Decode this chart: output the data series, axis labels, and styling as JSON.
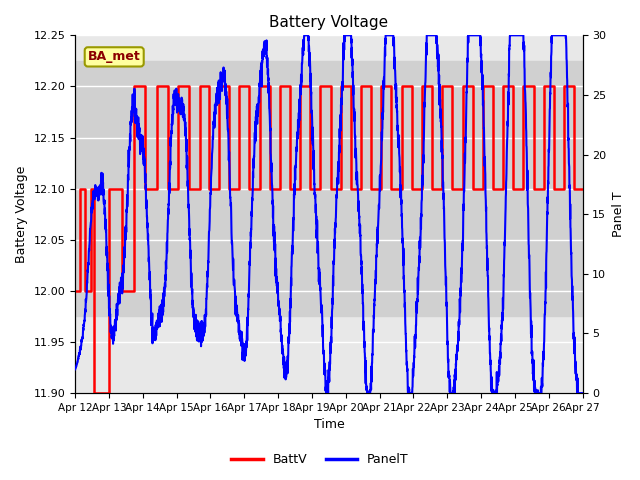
{
  "title": "Battery Voltage",
  "xlabel": "Time",
  "ylabel_left": "Battery Voltage",
  "ylabel_right": "Panel T",
  "ylim_left": [
    11.9,
    12.25
  ],
  "ylim_right": [
    0,
    30
  ],
  "yticks_left": [
    11.9,
    11.95,
    12.0,
    12.05,
    12.1,
    12.15,
    12.2,
    12.25
  ],
  "yticks_right": [
    0,
    5,
    10,
    15,
    20,
    25,
    30
  ],
  "xtick_labels": [
    "Apr 12",
    "Apr 13",
    "Apr 14",
    "Apr 15",
    "Apr 16",
    "Apr 17",
    "Apr 18",
    "Apr 19",
    "Apr 20",
    "Apr 21",
    "Apr 22",
    "Apr 23",
    "Apr 24",
    "Apr 25",
    "Apr 26",
    "Apr 27"
  ],
  "legend_label_red": "BattV",
  "legend_label_blue": "PanelT",
  "annotation_text": "BA_met",
  "background_color": "#ffffff",
  "outer_bg_color": "#e8e8e8",
  "inner_band_color": "#d0d0d0",
  "grid_color": "#ffffff",
  "batt_color": "#ff0000",
  "panel_color": "#0000ff",
  "batt_linewidth": 1.8,
  "panel_linewidth": 1.5,
  "batt_steps_x": [
    0.0,
    0.13,
    0.13,
    0.28,
    0.28,
    0.48,
    0.48,
    0.56,
    0.56,
    1.0,
    1.0,
    1.38,
    1.38,
    1.75,
    1.75,
    2.05,
    2.05,
    2.42,
    2.42,
    2.75,
    2.75,
    3.05,
    3.05,
    3.38,
    3.38,
    3.7,
    3.7,
    3.95,
    3.95,
    4.25,
    4.25,
    4.55,
    4.55,
    4.85,
    4.85,
    5.15,
    5.15,
    5.45,
    5.45,
    5.75,
    5.75,
    6.05,
    6.05,
    6.35,
    6.35,
    6.65,
    6.65,
    6.95,
    6.95,
    7.25,
    7.25,
    7.55,
    7.55,
    7.85,
    7.85,
    8.15,
    8.15,
    8.45,
    8.45,
    8.75,
    8.75,
    9.05,
    9.05,
    9.35,
    9.35,
    9.65,
    9.65,
    9.95,
    9.95,
    10.25,
    10.25,
    10.55,
    10.55,
    10.85,
    10.85,
    11.15,
    11.15,
    11.45,
    11.45,
    11.75,
    11.75,
    12.05,
    12.05,
    12.35,
    12.35,
    12.65,
    12.65,
    12.95,
    12.95,
    13.25,
    13.25,
    13.55,
    13.55,
    13.85,
    13.85,
    14.15,
    14.15,
    14.45,
    14.45,
    14.75,
    14.75,
    15.0
  ],
  "batt_steps_y": [
    12.0,
    12.0,
    12.1,
    12.1,
    12.0,
    12.0,
    12.1,
    12.1,
    11.9,
    11.9,
    12.1,
    12.1,
    12.0,
    12.0,
    12.2,
    12.2,
    12.1,
    12.1,
    12.2,
    12.2,
    12.1,
    12.1,
    12.2,
    12.2,
    12.1,
    12.1,
    12.2,
    12.2,
    12.1,
    12.1,
    12.2,
    12.2,
    12.1,
    12.1,
    12.2,
    12.2,
    12.1,
    12.1,
    12.2,
    12.2,
    12.1,
    12.1,
    12.2,
    12.2,
    12.1,
    12.1,
    12.2,
    12.2,
    12.1,
    12.1,
    12.2,
    12.2,
    12.1,
    12.1,
    12.2,
    12.2,
    12.1,
    12.1,
    12.2,
    12.2,
    12.1,
    12.1,
    12.2,
    12.2,
    12.1,
    12.1,
    12.2,
    12.2,
    12.1,
    12.1,
    12.2,
    12.2,
    12.1,
    12.1,
    12.2,
    12.2,
    12.1,
    12.1,
    12.2,
    12.2,
    12.1,
    12.1,
    12.2,
    12.2,
    12.1,
    12.1,
    12.2,
    12.2,
    12.1,
    12.1,
    12.2,
    12.2,
    12.1,
    12.1,
    12.2,
    12.2,
    12.1,
    12.1,
    12.2,
    12.2,
    12.1,
    12.1
  ]
}
